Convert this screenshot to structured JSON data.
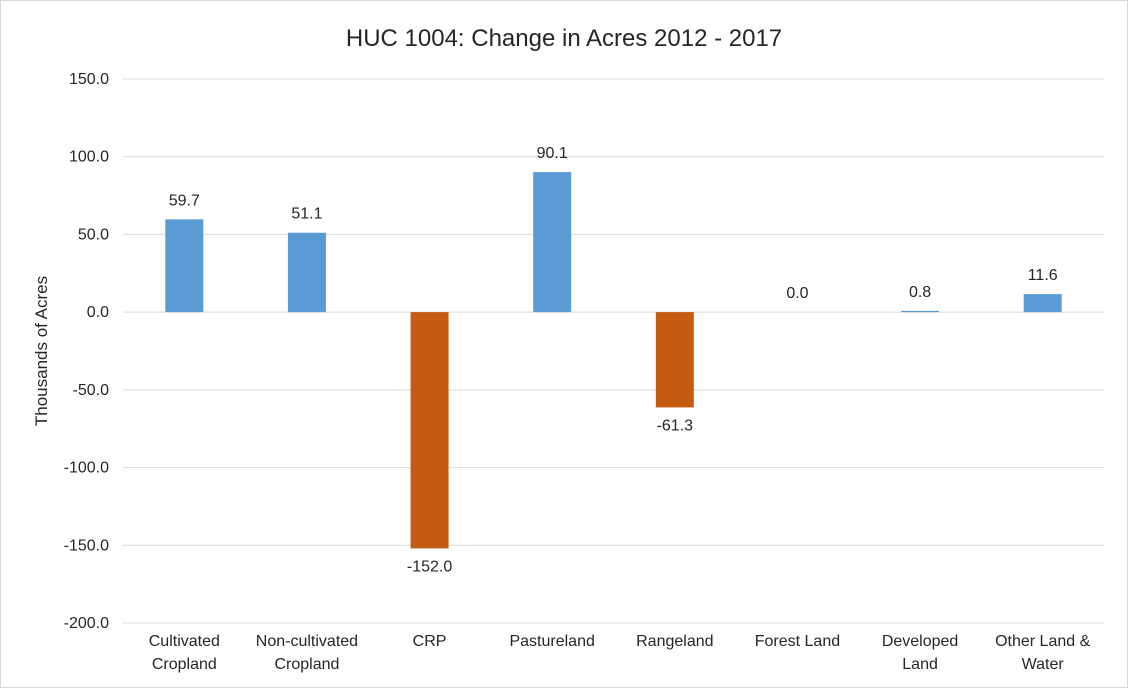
{
  "chart_data": {
    "type": "bar",
    "title": "HUC 1004: Change in Acres 2012 - 2017",
    "ylabel": "Thousands of Acres",
    "xlabel": "",
    "ylim": [
      -200,
      150
    ],
    "ytick_step": 50,
    "ytick_labels": [
      "150.0",
      "100.0",
      "50.0",
      "0.0",
      "-50.0",
      "-100.0",
      "-150.0",
      "-200.0"
    ],
    "grid": true,
    "categories": [
      [
        "Cultivated",
        "Cropland"
      ],
      [
        "Non-cultivated",
        "Cropland"
      ],
      [
        "CRP"
      ],
      [
        "Pastureland"
      ],
      [
        "Rangeland"
      ],
      [
        "Forest Land"
      ],
      [
        "Developed",
        "Land"
      ],
      [
        "Other Land &",
        "Water"
      ]
    ],
    "values": [
      59.7,
      51.1,
      -152.0,
      90.1,
      -61.3,
      0.0,
      0.8,
      11.6
    ],
    "value_labels": [
      "59.7",
      "51.1",
      "-152.0",
      "90.1",
      "-61.3",
      "0.0",
      "0.8",
      "11.6"
    ],
    "colors": {
      "positive": "#5b9bd5",
      "negative": "#c55a11"
    }
  }
}
